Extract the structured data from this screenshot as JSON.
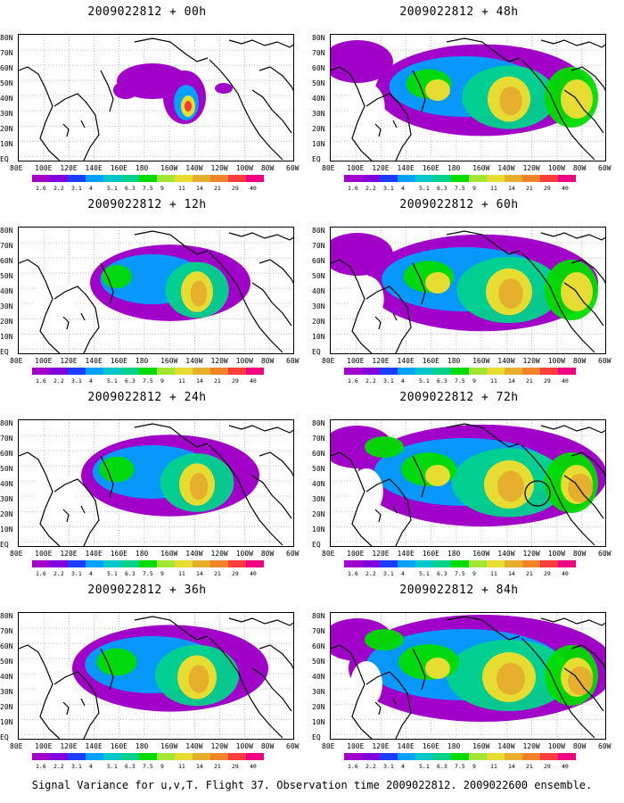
{
  "panels": [
    {
      "title": "2009022812 + 00h",
      "lead": 0
    },
    {
      "title": "2009022812 + 48h",
      "lead": 48
    },
    {
      "title": "2009022812 + 12h",
      "lead": 12
    },
    {
      "title": "2009022812 + 60h",
      "lead": 60
    },
    {
      "title": "2009022812 + 24h",
      "lead": 24
    },
    {
      "title": "2009022812 + 72h",
      "lead": 72
    },
    {
      "title": "2009022812 + 36h",
      "lead": 36
    },
    {
      "title": "2009022812 + 84h",
      "lead": 84
    }
  ],
  "lat_labels": [
    "80N",
    "70N",
    "60N",
    "50N",
    "40N",
    "30N",
    "20N",
    "10N",
    "EQ"
  ],
  "lon_labels": [
    "80E",
    "100E",
    "120E",
    "140E",
    "160E",
    "180",
    "160W",
    "140W",
    "120W",
    "100W",
    "80W",
    "60W"
  ],
  "colorbar": {
    "levels": [
      "1.6",
      "2.2",
      "3.1",
      "4",
      "5.1",
      "6.3",
      "7.5",
      "9",
      "11",
      "14",
      "21",
      "29",
      "40"
    ],
    "colors": [
      "#a000c8",
      "#8200dc",
      "#1e3cff",
      "#00a0ff",
      "#00c8c8",
      "#00d28c",
      "#00dc00",
      "#a0e632",
      "#e6dc32",
      "#e6af2d",
      "#f08228",
      "#fa3c3c",
      "#f00082"
    ]
  },
  "footer": "Signal Variance for u,v,T. Flight 37. Observation time 2009022812. 2009022600 ensemble."
}
